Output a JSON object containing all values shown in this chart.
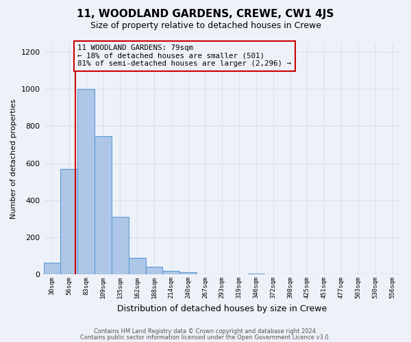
{
  "title": "11, WOODLAND GARDENS, CREWE, CW1 4JS",
  "subtitle": "Size of property relative to detached houses in Crewe",
  "xlabel": "Distribution of detached houses by size in Crewe",
  "ylabel": "Number of detached properties",
  "bin_labels": [
    "30sqm",
    "56sqm",
    "83sqm",
    "109sqm",
    "135sqm",
    "162sqm",
    "188sqm",
    "214sqm",
    "240sqm",
    "267sqm",
    "293sqm",
    "319sqm",
    "346sqm",
    "372sqm",
    "398sqm",
    "425sqm",
    "451sqm",
    "477sqm",
    "503sqm",
    "530sqm",
    "556sqm"
  ],
  "bar_values": [
    65,
    570,
    1000,
    745,
    310,
    90,
    40,
    20,
    10,
    0,
    0,
    0,
    5,
    0,
    0,
    0,
    0,
    0,
    0,
    0,
    0
  ],
  "bar_color": "#aec6e8",
  "bar_edge_color": "#5b9bd5",
  "property_size": 79,
  "bin_edges": [
    30,
    56,
    83,
    109,
    135,
    162,
    188,
    214,
    240,
    267,
    293,
    319,
    346,
    372,
    398,
    425,
    451,
    477,
    503,
    530,
    556
  ],
  "vline_color": "#cc0000",
  "annotation_line1": "11 WOODLAND GARDENS: 79sqm",
  "annotation_line2": "← 18% of detached houses are smaller (501)",
  "annotation_line3": "81% of semi-detached houses are larger (2,296) →",
  "annotation_box_color": "#cc0000",
  "ylim": [
    0,
    1250
  ],
  "yticks": [
    0,
    200,
    400,
    600,
    800,
    1000,
    1200
  ],
  "footer_line1": "Contains HM Land Registry data © Crown copyright and database right 2024.",
  "footer_line2": "Contains public sector information licensed under the Open Government Licence v3.0.",
  "bg_color": "#eef2f8",
  "grid_color": "#d8e0ec"
}
